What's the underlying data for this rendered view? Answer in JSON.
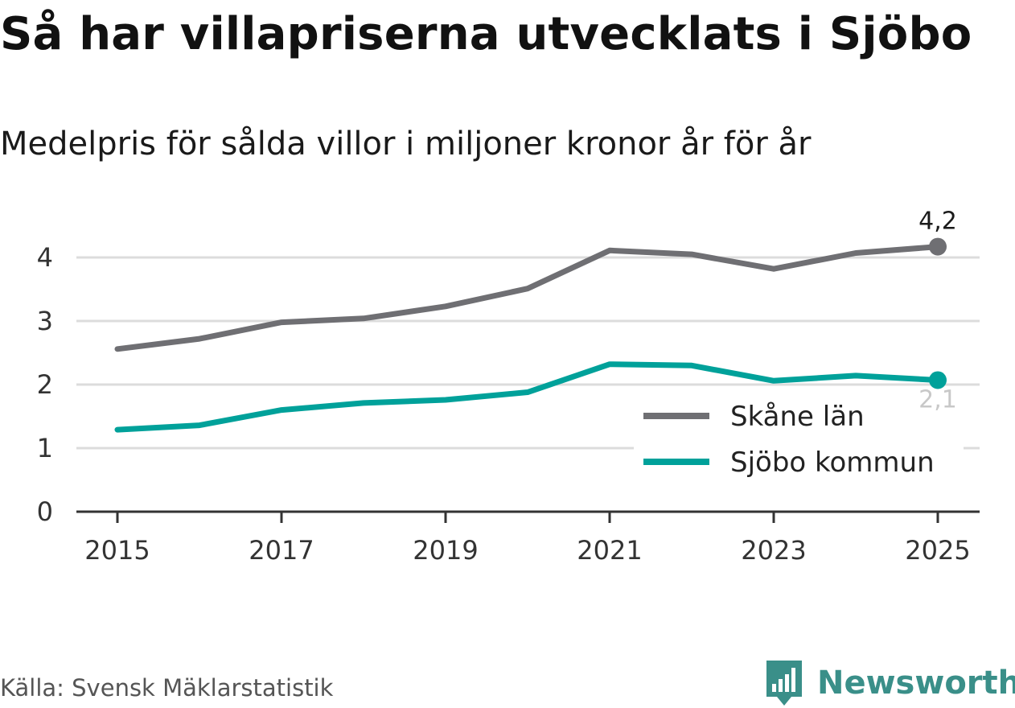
{
  "title": "Så har villapriserna utvecklats i Sjöbo",
  "subtitle": "Medelpris för sålda villor i miljoner kronor år för år",
  "source": "Källa: Svensk Mäklarstatistik",
  "brand": {
    "name": "Newsworthy",
    "icon": "newsworthy-logo-icon",
    "color": "#3a8f89"
  },
  "chart_data": {
    "type": "line",
    "title": "Så har villapriserna utvecklats i Sjöbo",
    "subtitle": "Medelpris för sålda villor i miljoner kronor år för år",
    "xlabel": "",
    "ylabel": "",
    "x": [
      2015,
      2016,
      2017,
      2018,
      2019,
      2020,
      2021,
      2022,
      2023,
      2024,
      2025
    ],
    "x_ticks": [
      "2015",
      "2017",
      "2019",
      "2021",
      "2023",
      "2025"
    ],
    "y_ticks": [
      "0",
      "1",
      "2",
      "3",
      "4"
    ],
    "ylim": [
      0,
      4.5
    ],
    "grid": true,
    "legend_position": "right",
    "series": [
      {
        "name": "Skåne län",
        "color": "#6f6f73",
        "values": [
          2.56,
          2.72,
          2.98,
          3.04,
          3.23,
          3.51,
          4.11,
          4.05,
          3.82,
          4.07,
          4.17
        ],
        "end_label": "4,2",
        "end_label_color": "#1a1a1a"
      },
      {
        "name": "Sjöbo kommun",
        "color": "#00a19a",
        "values": [
          1.29,
          1.36,
          1.6,
          1.71,
          1.76,
          1.88,
          2.32,
          2.3,
          2.06,
          2.14,
          2.07
        ],
        "end_label": "2,1",
        "end_label_color": "#c8c8c8"
      }
    ]
  }
}
